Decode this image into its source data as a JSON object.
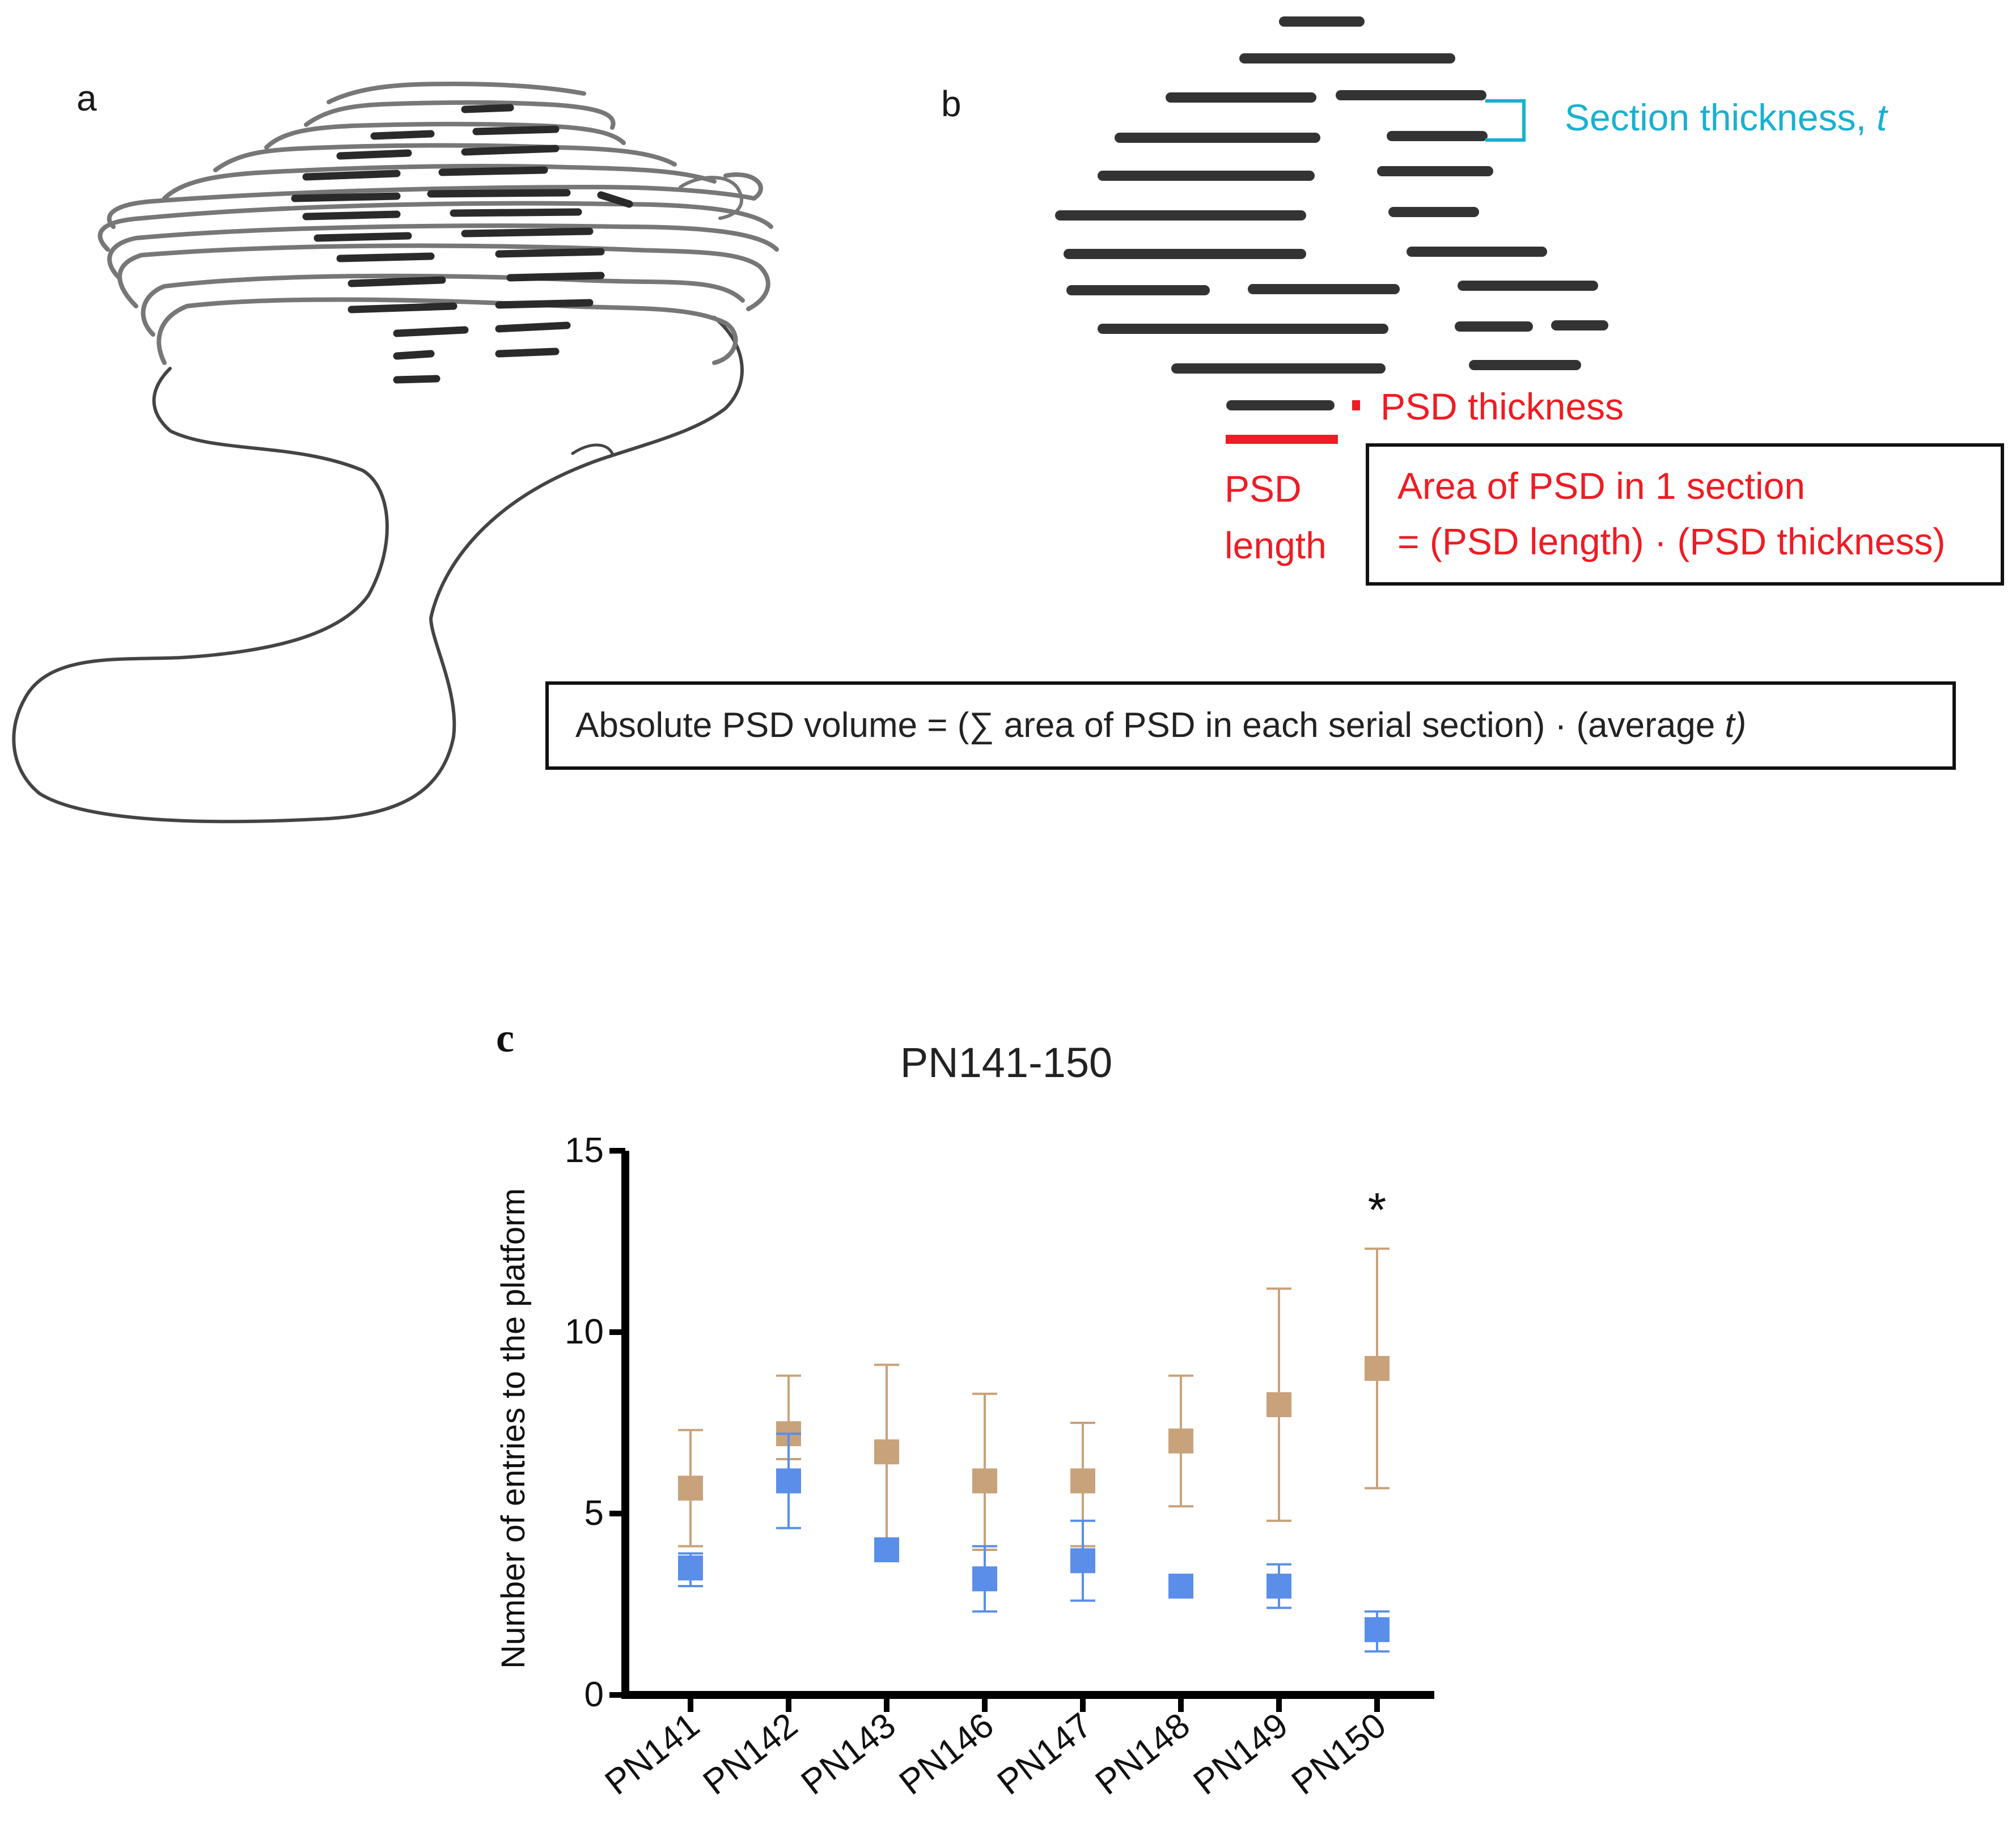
{
  "panel_a": {
    "letter": "a"
  },
  "panel_b": {
    "letter": "b",
    "section_thickness_label": "Section thickness, ",
    "section_thickness_var": "t",
    "psd_thickness_label": "PSD thickness",
    "psd_length_line1": "PSD",
    "psd_length_line2": "length",
    "area_line1": "Area of PSD in 1 section",
    "area_line2": "= (PSD length) · (PSD thickness)",
    "volume_formula_main": "Absolute PSD volume = (∑ area of PSD in each serial section) · (average ",
    "volume_formula_var": "t)",
    "colors": {
      "psd_bar": "#333333",
      "highlight": "#ee1c24",
      "thickness_bracket": "#1ab0cf"
    }
  },
  "panel_c": {
    "letter": "c"
  },
  "chart_data": {
    "type": "scatter",
    "title": "PN141-150",
    "xlabel": "",
    "ylabel": "Number of entries to the platform",
    "categories": [
      "PN141",
      "PN142",
      "PN143",
      "PN146",
      "PN147",
      "PN148",
      "PN149",
      "PN150"
    ],
    "ylim": [
      0,
      15
    ],
    "yticks": [
      "0",
      "5",
      "10",
      "15"
    ],
    "grid": false,
    "significance_marker": {
      "category": "PN150",
      "symbol": "*"
    },
    "series": [
      {
        "color": "#c8a27a",
        "values": [
          5.7,
          7.2,
          6.7,
          5.9,
          5.9,
          7.0,
          8.0,
          9.0
        ],
        "error_low": [
          4.1,
          6.5,
          4.0,
          4.0,
          4.1,
          5.2,
          4.8,
          5.7
        ],
        "error_high": [
          7.3,
          8.8,
          9.1,
          8.3,
          7.5,
          8.8,
          11.2,
          12.3
        ]
      },
      {
        "color": "#5a8ee8",
        "values": [
          3.5,
          5.9,
          4.0,
          3.2,
          3.7,
          3.0,
          3.0,
          1.8
        ],
        "error_low": [
          3.0,
          4.6,
          3.8,
          2.3,
          2.6,
          2.7,
          2.4,
          1.2
        ],
        "error_high": [
          3.9,
          7.2,
          4.2,
          4.1,
          4.8,
          3.3,
          3.6,
          2.3
        ]
      }
    ]
  }
}
